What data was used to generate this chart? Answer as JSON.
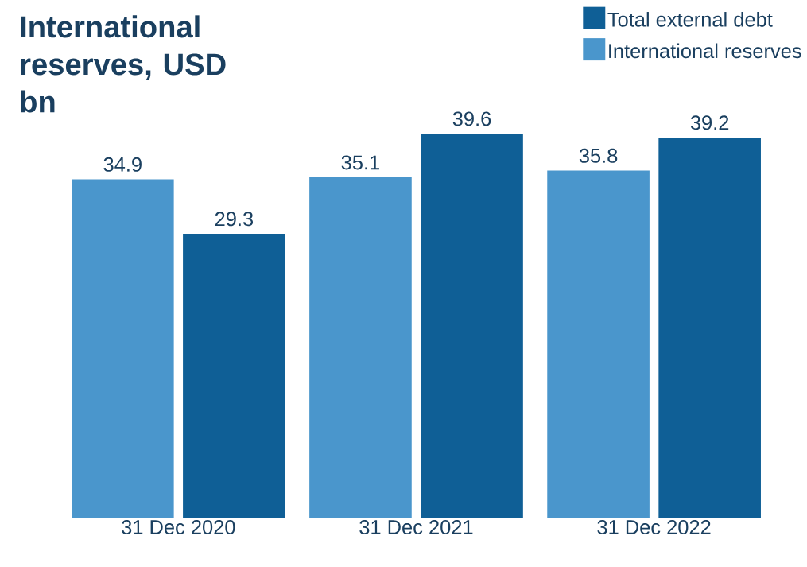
{
  "chart_data": {
    "type": "bar",
    "title": "International reserves, USD bn",
    "categories": [
      "31 Dec 2020",
      "31 Dec 2021",
      "31 Dec 2022"
    ],
    "series": [
      {
        "name": "International reserves",
        "color": "#4a96cc",
        "values": [
          34.9,
          35.1,
          35.8
        ]
      },
      {
        "name": "Total external debt",
        "color": "#0f5f96",
        "values": [
          29.3,
          39.6,
          39.2
        ]
      }
    ],
    "data_labels": true,
    "legend": "top right"
  }
}
